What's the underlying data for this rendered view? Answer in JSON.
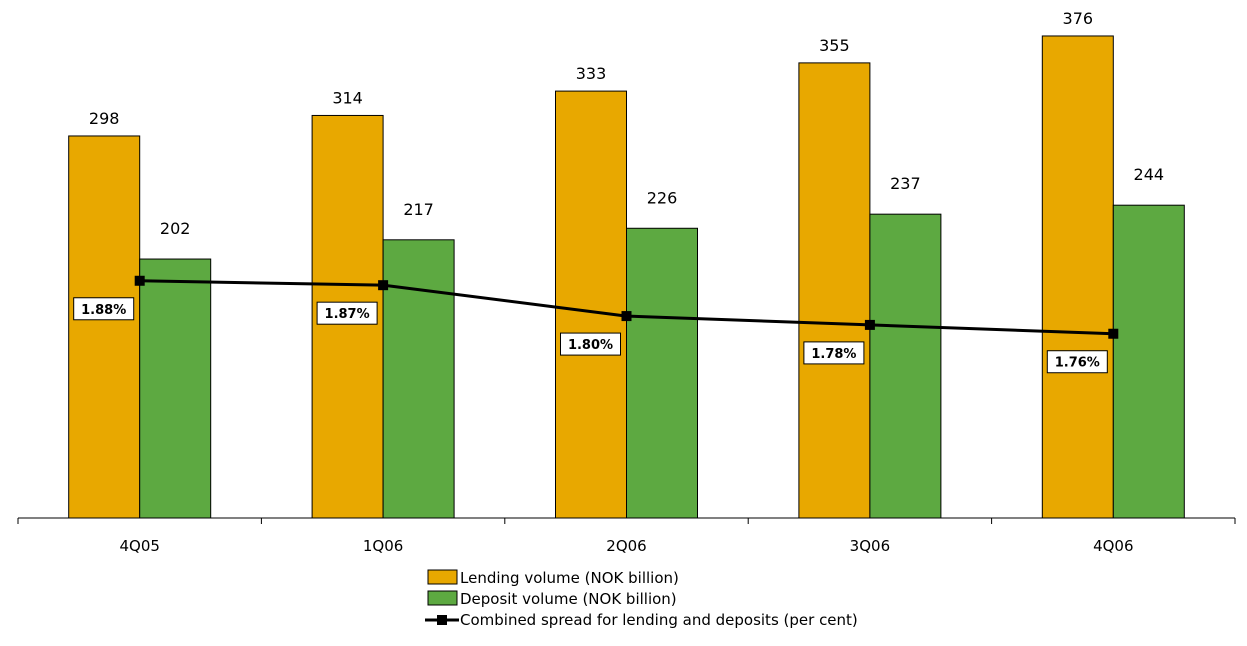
{
  "chart_data": {
    "type": "bar",
    "title": "",
    "xlabel": "",
    "ylabel": "",
    "categories": [
      "4Q05",
      "1Q06",
      "2Q06",
      "3Q06",
      "4Q06"
    ],
    "ylim": [
      0,
      400
    ],
    "series": [
      {
        "name": "Lending volume (NOK billion)",
        "kind": "bar",
        "color": "#E8A800",
        "values": [
          298,
          314,
          333,
          355,
          376
        ],
        "labels": [
          "298",
          "314",
          "333",
          "355",
          "376"
        ]
      },
      {
        "name": "Deposit volume (NOK billion)",
        "kind": "bar",
        "color": "#5DA941",
        "values": [
          202,
          217,
          226,
          237,
          244
        ],
        "labels": [
          "202",
          "217",
          "226",
          "237",
          "244"
        ]
      },
      {
        "name": "Combined spread for lending and deposits (per cent)",
        "kind": "line",
        "color": "#000000",
        "values": [
          1.88,
          1.87,
          1.8,
          1.78,
          1.76
        ],
        "labels": [
          "1.88%",
          "1.87%",
          "1.80%",
          "1.78%",
          "1.76%"
        ]
      }
    ],
    "secondary_ylim": [
      0,
      4
    ],
    "grid": false,
    "legend": "bottom-center"
  }
}
